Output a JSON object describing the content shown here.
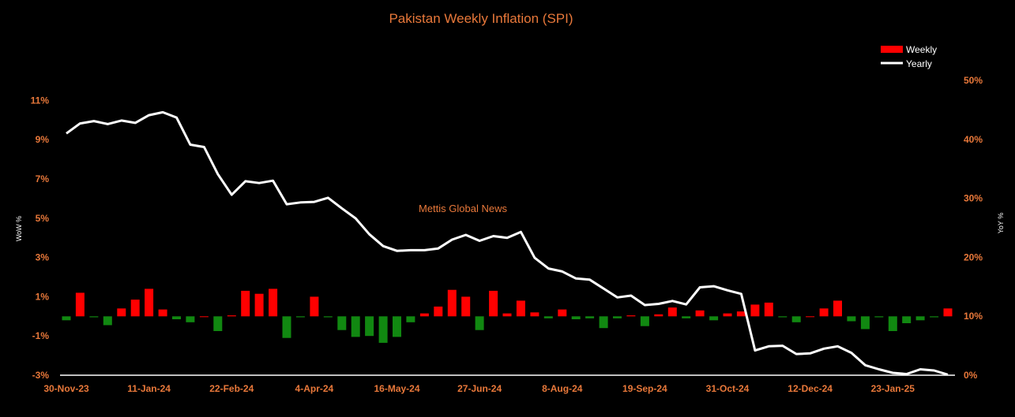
{
  "chart_data": {
    "type": "bar",
    "title": "Pakistan Weekly Inflation (SPI)",
    "annotation": "Mettis Global News",
    "x_tick_labels": [
      "30-Nov-23",
      "11-Jan-24",
      "22-Feb-24",
      "4-Apr-24",
      "16-May-24",
      "27-Jun-24",
      "8-Aug-24",
      "19-Sep-24",
      "31-Oct-24",
      "12-Dec-24",
      "23-Jan-25"
    ],
    "y_left": {
      "label": "WoW %",
      "ticks": [
        "11%",
        "9%",
        "7%",
        "5%",
        "3%",
        "1%",
        "-1%",
        "-3%"
      ],
      "lim": [
        -3,
        12
      ]
    },
    "y_right": {
      "label": "YoY %",
      "ticks": [
        "50%",
        "40%",
        "30%",
        "20%",
        "10%",
        "0%"
      ],
      "lim": [
        0,
        50
      ]
    },
    "legend": {
      "position": "top-right",
      "entries": [
        "Weekly",
        "Yearly"
      ]
    },
    "colors": {
      "positive": "#ff0000",
      "negative": "#118811",
      "line": "#ffffff",
      "text": "#e8783a"
    },
    "series": [
      {
        "name": "Weekly",
        "type": "bar",
        "axis": "left",
        "values": [
          -0.2,
          1.2,
          -0.05,
          -0.45,
          0.4,
          0.85,
          1.4,
          0.35,
          -0.15,
          -0.3,
          0.0,
          -0.75,
          0.05,
          1.3,
          1.15,
          1.4,
          -1.1,
          -0.05,
          1.0,
          -0.05,
          -0.7,
          -1.05,
          -1.0,
          -1.35,
          -1.05,
          -0.3,
          0.15,
          0.5,
          1.35,
          1.0,
          -0.7,
          1.3,
          0.15,
          0.8,
          0.2,
          -0.1,
          0.35,
          -0.15,
          -0.1,
          -0.6,
          -0.1,
          0.05,
          -0.5,
          0.1,
          0.45,
          -0.1,
          0.3,
          -0.2,
          0.15,
          0.25,
          0.6,
          0.7,
          -0.05,
          -0.3,
          0.0,
          0.4,
          0.8,
          -0.25,
          -0.65,
          -0.05,
          -0.75,
          -0.35,
          -0.2,
          -0.05,
          0.4
        ]
      },
      {
        "name": "Yearly",
        "type": "line",
        "axis": "right",
        "values": [
          41.0,
          42.7,
          43.1,
          42.6,
          43.2,
          42.8,
          44.1,
          44.6,
          43.7,
          39.1,
          38.7,
          34.1,
          30.6,
          32.9,
          32.6,
          33.0,
          29.0,
          29.3,
          29.4,
          30.1,
          28.3,
          26.6,
          23.9,
          21.9,
          21.1,
          21.2,
          21.2,
          21.5,
          23.0,
          23.8,
          22.8,
          23.6,
          23.3,
          24.3,
          19.9,
          18.1,
          17.6,
          16.4,
          16.2,
          14.7,
          13.2,
          13.5,
          11.9,
          12.1,
          12.6,
          12.0,
          14.9,
          15.1,
          14.4,
          13.8,
          4.2,
          4.9,
          5.0,
          3.6,
          3.7,
          4.5,
          4.9,
          3.8,
          1.7,
          1.0,
          0.4,
          0.2,
          1.0,
          0.8,
          0.1
        ]
      }
    ]
  }
}
